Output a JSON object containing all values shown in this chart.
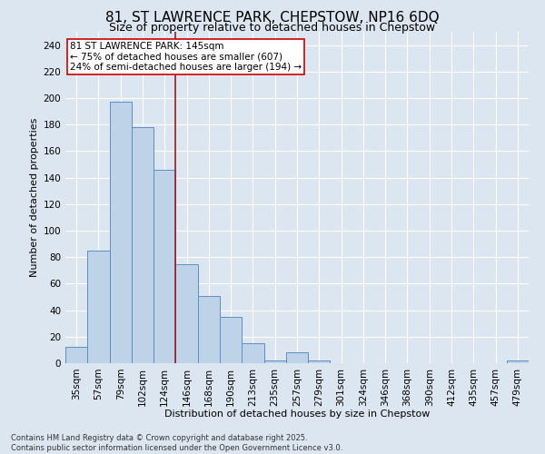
{
  "title": "81, ST LAWRENCE PARK, CHEPSTOW, NP16 6DQ",
  "subtitle": "Size of property relative to detached houses in Chepstow",
  "xlabel": "Distribution of detached houses by size in Chepstow",
  "ylabel": "Number of detached properties",
  "categories": [
    "35sqm",
    "57sqm",
    "79sqm",
    "102sqm",
    "124sqm",
    "146sqm",
    "168sqm",
    "190sqm",
    "213sqm",
    "235sqm",
    "257sqm",
    "279sqm",
    "301sqm",
    "324sqm",
    "346sqm",
    "368sqm",
    "390sqm",
    "412sqm",
    "435sqm",
    "457sqm",
    "479sqm"
  ],
  "values": [
    12,
    85,
    197,
    178,
    146,
    75,
    51,
    35,
    15,
    2,
    8,
    2,
    0,
    0,
    0,
    0,
    0,
    0,
    0,
    0,
    2
  ],
  "bar_color": "#bed3e8",
  "bar_edge_color": "#5b8ec4",
  "background_color": "#dce6f1",
  "plot_bg_color": "#dce6f1",
  "grid_color": "#ffffff",
  "vline_x": 4.5,
  "vline_color": "#9b1c1c",
  "annotation_text": "81 ST LAWRENCE PARK: 145sqm\n← 75% of detached houses are smaller (607)\n24% of semi-detached houses are larger (194) →",
  "annotation_box_color": "#ffffff",
  "annotation_box_edge": "#cc0000",
  "footnote": "Contains HM Land Registry data © Crown copyright and database right 2025.\nContains public sector information licensed under the Open Government Licence v3.0.",
  "ylim": [
    0,
    250
  ],
  "yticks": [
    0,
    20,
    40,
    60,
    80,
    100,
    120,
    140,
    160,
    180,
    200,
    220,
    240
  ],
  "title_fontsize": 11,
  "subtitle_fontsize": 9,
  "xlabel_fontsize": 8,
  "ylabel_fontsize": 8,
  "tick_fontsize": 7.5,
  "annotation_fontsize": 7.5,
  "footnote_fontsize": 6
}
